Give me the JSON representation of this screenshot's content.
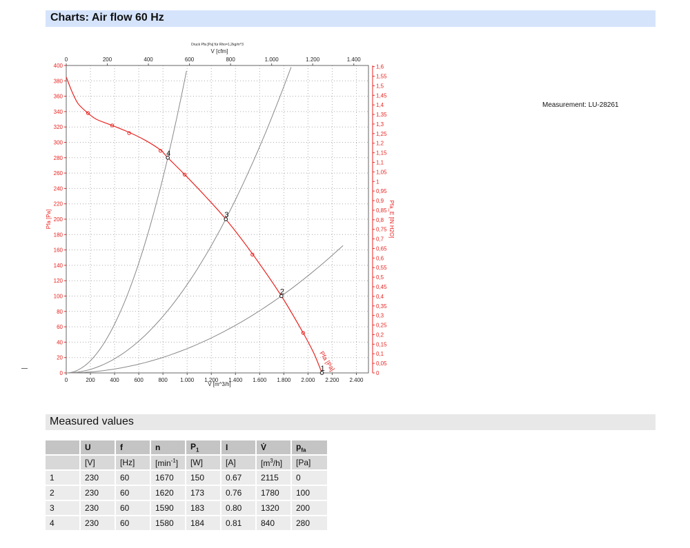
{
  "header": {
    "title": "Charts: Air flow 60 Hz"
  },
  "measurement_label": "Measurement: LU-28261",
  "chart_data": {
    "type": "line",
    "caption": "Druck Pfa [Pa] für Rho=1,2kg/m^3",
    "x_top_label": "V [cfm]",
    "x_bottom_label": "V [m^3/h]",
    "y_left_label": "Pfa [Pa]",
    "y_right_label": "Pfa_E [IN H2O]",
    "curve_label": "Pfa [Pa]",
    "x_bottom_range": [
      0,
      2500
    ],
    "y_left_range": [
      0,
      400
    ],
    "x_bottom_ticks": [
      "0",
      "200",
      "400",
      "600",
      "800",
      "1.000",
      "1.200",
      "1.400",
      "1.600",
      "1.800",
      "2.000",
      "2.200",
      "2.400"
    ],
    "x_top_ticks": [
      "0",
      "200",
      "400",
      "600",
      "800",
      "1.000",
      "1.200",
      "1.400"
    ],
    "y_left_ticks": [
      "0",
      "20",
      "40",
      "60",
      "80",
      "100",
      "120",
      "140",
      "160",
      "180",
      "200",
      "220",
      "240",
      "260",
      "280",
      "300",
      "320",
      "340",
      "360",
      "380",
      "400"
    ],
    "y_right_ticks": [
      "0",
      "0,05",
      "0,1",
      "0,15",
      "0,2",
      "0,25",
      "0,3",
      "0,35",
      "0,4",
      "0,45",
      "0,5",
      "0,55",
      "0,6",
      "0,65",
      "0,7",
      "0,75",
      "0,8",
      "0,85",
      "0,9",
      "0,95",
      "1",
      "1,05",
      "1,1",
      "1,15",
      "1,2",
      "1,25",
      "1,3",
      "1,35",
      "1,4",
      "1,45",
      "1,5",
      "1,55",
      "1,6"
    ],
    "grid": true,
    "fan_curve": {
      "name": "Pfa [Pa]",
      "color": "#e8231f",
      "x": [
        0,
        50,
        100,
        180,
        250,
        380,
        520,
        650,
        780,
        840,
        980,
        1150,
        1320,
        1540,
        1780,
        1960,
        2050,
        2115
      ],
      "y": [
        385,
        365,
        350,
        338,
        330,
        322,
        313,
        303,
        290,
        280,
        258,
        230,
        200,
        155,
        100,
        52,
        25,
        0
      ]
    },
    "measured_markers": {
      "x": [
        180,
        380,
        520,
        780,
        980,
        1540,
        1960
      ],
      "y": [
        338,
        322,
        312,
        289,
        258,
        154,
        52
      ]
    },
    "operating_points": [
      {
        "label": "4",
        "x": 840,
        "y": 280
      },
      {
        "label": "3",
        "x": 1320,
        "y": 200
      },
      {
        "label": "2",
        "x": 1780,
        "y": 100
      },
      {
        "label": "1",
        "x": 2115,
        "y": 0
      }
    ],
    "system_curves": [
      {
        "name": "4",
        "color": "#888888",
        "k": 0.000397,
        "xmax": 995
      },
      {
        "name": "3",
        "color": "#888888",
        "k": 0.000115,
        "xmax": 1860
      },
      {
        "name": "2",
        "color": "#888888",
        "k": 3.16e-05,
        "xmax": 2290
      }
    ]
  },
  "measured": {
    "title": "Measured values",
    "headers": [
      "",
      "U",
      "f",
      "n",
      "P1",
      "I",
      "V̇",
      "pfa"
    ],
    "units": [
      "",
      "[V]",
      "[Hz]",
      "[min-1]",
      "[W]",
      "[A]",
      "[m3/h]",
      "[Pa]"
    ],
    "rows": [
      [
        "1",
        "230",
        "60",
        "1670",
        "150",
        "0.67",
        "2115",
        "0"
      ],
      [
        "2",
        "230",
        "60",
        "1620",
        "173",
        "0.76",
        "1780",
        "100"
      ],
      [
        "3",
        "230",
        "60",
        "1590",
        "183",
        "0.80",
        "1320",
        "200"
      ],
      [
        "4",
        "230",
        "60",
        "1580",
        "184",
        "0.81",
        "840",
        "280"
      ]
    ]
  }
}
